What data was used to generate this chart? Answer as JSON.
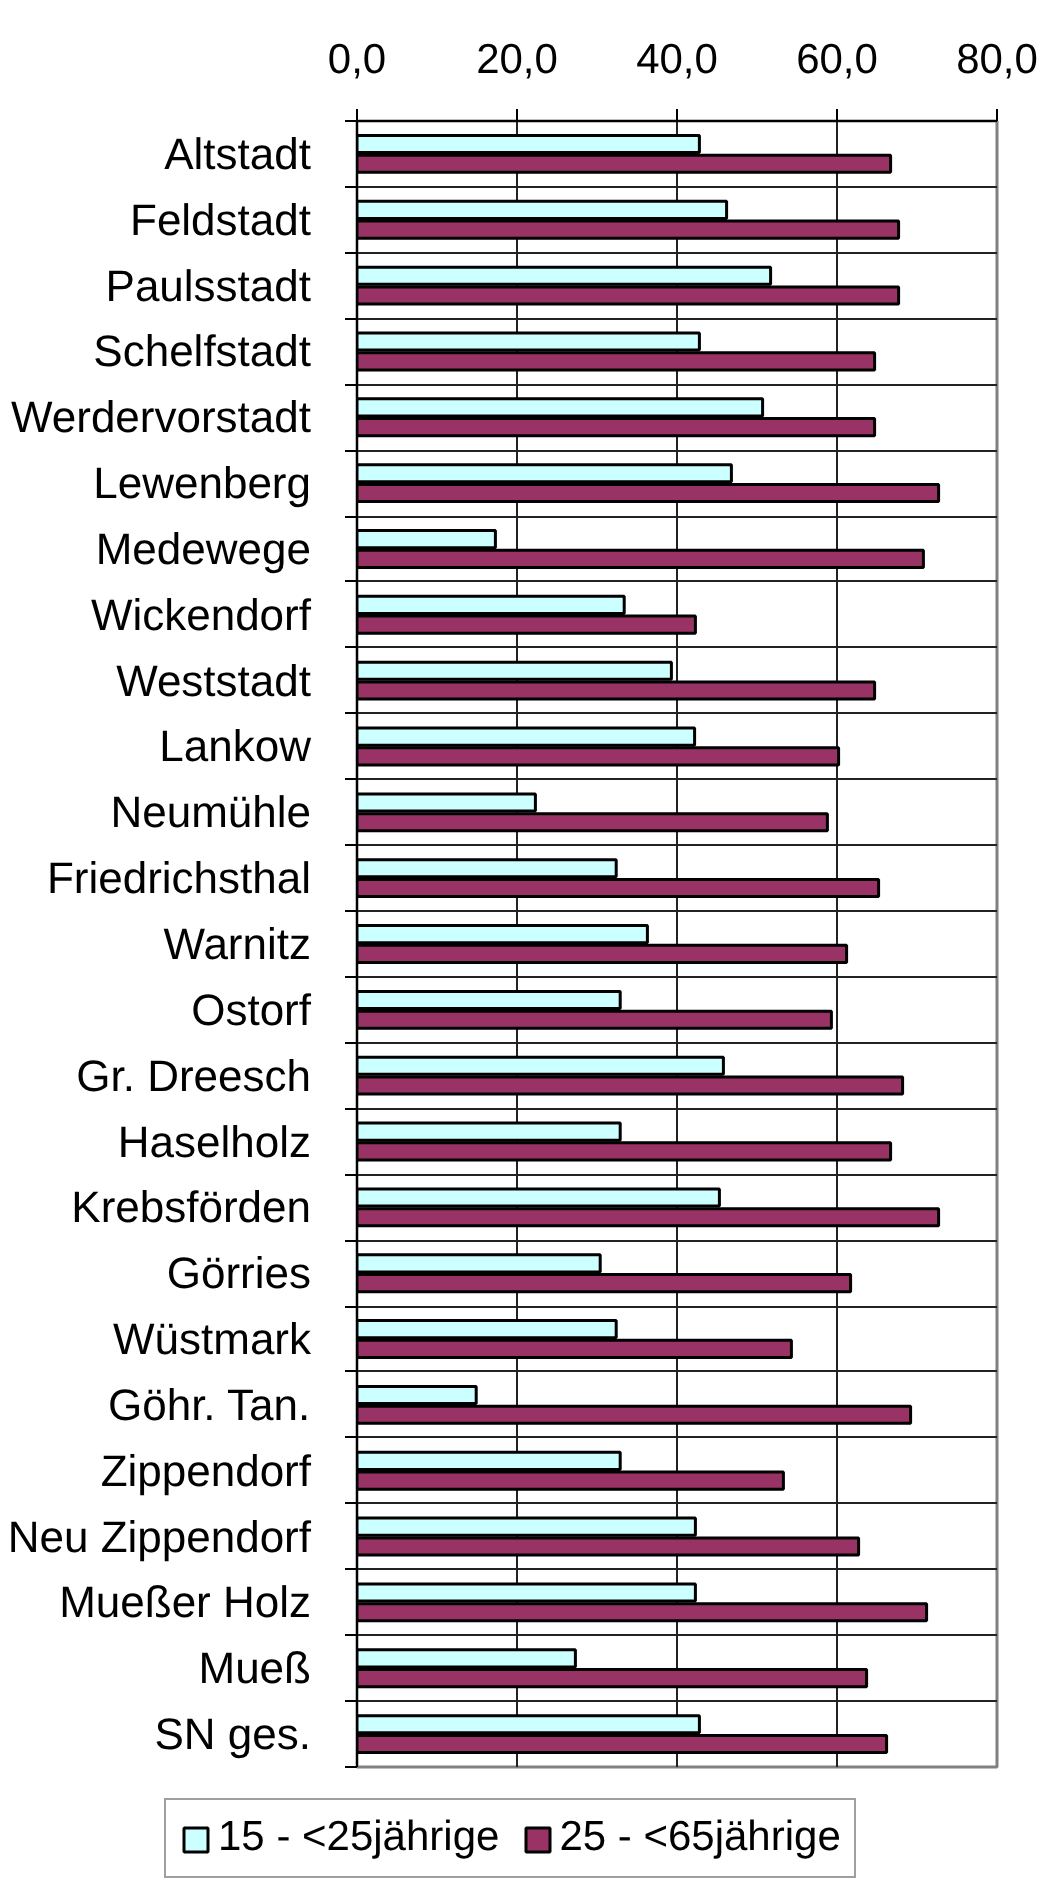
{
  "chart_data": {
    "type": "bar",
    "orientation": "horizontal",
    "categories": [
      "Altstadt",
      "Feldstadt",
      "Paulsstadt",
      "Schelfstadt",
      "Werdervorstadt",
      "Lewenberg",
      "Medewege",
      "Wickendorf",
      "Weststadt",
      "Lankow",
      "Neumühle",
      "Friedrichsthal",
      "Warnitz",
      "Ostorf",
      "Gr. Dreesch",
      "Haselholz",
      "Krebsförden",
      "Görries",
      "Wüstmark",
      "Göhr. Tan.",
      "Zippendorf",
      "Neu Zippendorf",
      "Mueßer Holz",
      "Mueß",
      "SN ges."
    ],
    "series": [
      {
        "name": "15 - <25jährige",
        "color": "#ccffff",
        "values": [
          42.8,
          46.2,
          51.7,
          42.8,
          50.7,
          46.8,
          17.3,
          33.4,
          39.3,
          42.2,
          22.3,
          32.4,
          36.3,
          32.9,
          45.8,
          32.9,
          45.3,
          30.4,
          32.4,
          14.9,
          32.9,
          42.3,
          42.3,
          27.3,
          42.8
        ]
      },
      {
        "name": "25 - <65jährige",
        "color": "#993366",
        "values": [
          66.7,
          67.7,
          67.7,
          64.7,
          64.7,
          72.7,
          70.8,
          42.3,
          64.7,
          60.2,
          58.8,
          65.2,
          61.2,
          59.3,
          68.2,
          66.7,
          72.7,
          61.7,
          54.3,
          69.2,
          53.3,
          62.7,
          71.2,
          63.7,
          66.2
        ]
      }
    ],
    "xlim": [
      0,
      80
    ],
    "xticks": [
      {
        "value": 0,
        "label": "0,0"
      },
      {
        "value": 20,
        "label": "20,0"
      },
      {
        "value": 40,
        "label": "40,0"
      },
      {
        "value": 60,
        "label": "60,0"
      },
      {
        "value": 80,
        "label": "80,0"
      }
    ],
    "grid": true,
    "legend": "bottom"
  }
}
